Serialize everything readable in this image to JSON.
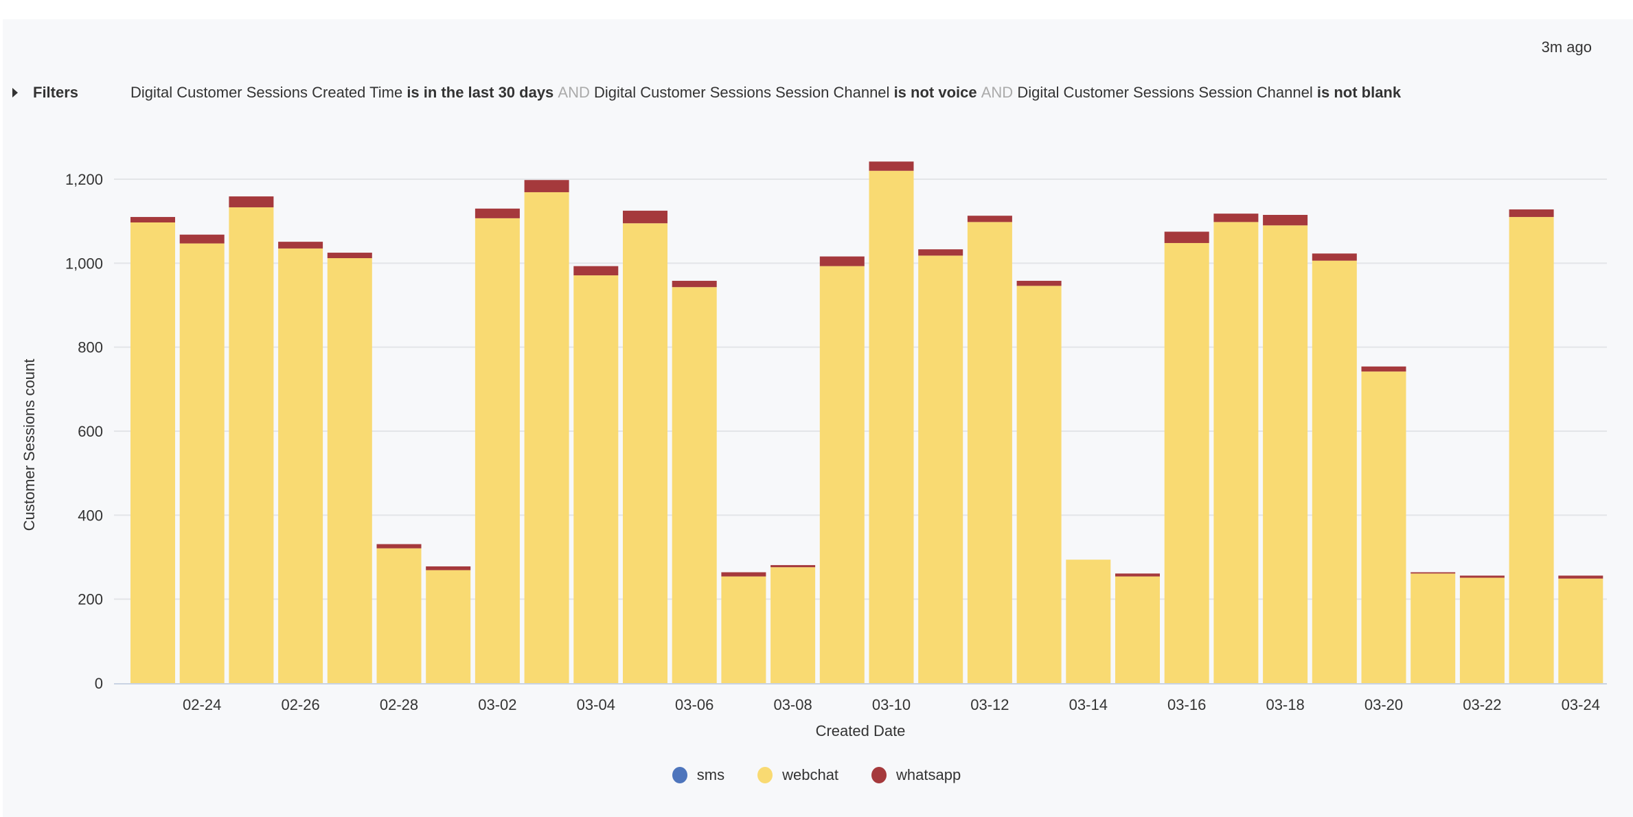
{
  "header": {
    "updated": "3m ago"
  },
  "filters": {
    "label": "Filters",
    "conditions": [
      {
        "field": "Digital Customer Sessions Created Time",
        "op": "is in the last 30 days"
      },
      {
        "field": "Digital Customer Sessions Session Channel",
        "op": "is not voice"
      },
      {
        "field": "Digital Customer Sessions Session Channel",
        "op": "is not blank"
      }
    ],
    "joiner": "AND"
  },
  "chart_data": {
    "type": "bar",
    "stacked": true,
    "xlabel": "Created Date",
    "ylabel": "Customer Sessions count",
    "ylim": [
      0,
      1250
    ],
    "yticks": [
      "0",
      "200",
      "400",
      "600",
      "800",
      "1,000",
      "1,200"
    ],
    "ytick_values": [
      0,
      200,
      400,
      600,
      800,
      1000,
      1200
    ],
    "grid": true,
    "legend_placement": "bottom",
    "categories": [
      "02-23",
      "02-24",
      "02-25",
      "02-26",
      "02-27",
      "02-28",
      "03-01",
      "03-02",
      "03-03",
      "03-04",
      "03-05",
      "03-06",
      "03-07",
      "03-08",
      "03-09",
      "03-10",
      "03-11",
      "03-12",
      "03-13",
      "03-14",
      "03-15",
      "03-16",
      "03-17",
      "03-18",
      "03-19",
      "03-20",
      "03-21",
      "03-22",
      "03-23",
      "03-24"
    ],
    "xtick_labels": [
      "02-24",
      "02-26",
      "02-28",
      "03-02",
      "03-04",
      "03-06",
      "03-08",
      "03-10",
      "03-12",
      "03-14",
      "03-16",
      "03-18",
      "03-20",
      "03-22",
      "03-24"
    ],
    "series": [
      {
        "name": "sms",
        "color": "#4e75bc",
        "values": [
          0,
          0,
          0,
          0,
          0,
          0,
          0,
          0,
          0,
          0,
          0,
          0,
          0,
          0,
          0,
          0,
          0,
          0,
          0,
          0,
          0,
          0,
          0,
          0,
          0,
          0,
          0,
          0,
          0,
          0
        ]
      },
      {
        "name": "webchat",
        "color": "#f9da72",
        "values": [
          1097,
          1047,
          1133,
          1035,
          1012,
          321,
          269,
          1107,
          1169,
          971,
          1095,
          943,
          254,
          276,
          993,
          1220,
          1018,
          1098,
          946,
          294,
          254,
          1048,
          1098,
          1090,
          1006,
          742,
          261,
          251,
          1110,
          249
        ]
      },
      {
        "name": "whatsapp",
        "color": "#a5393c",
        "values": [
          13,
          21,
          26,
          16,
          13,
          10,
          9,
          23,
          29,
          22,
          30,
          15,
          10,
          5,
          23,
          22,
          15,
          15,
          12,
          0,
          7,
          27,
          20,
          25,
          17,
          12,
          3,
          5,
          18,
          7
        ]
      }
    ]
  }
}
